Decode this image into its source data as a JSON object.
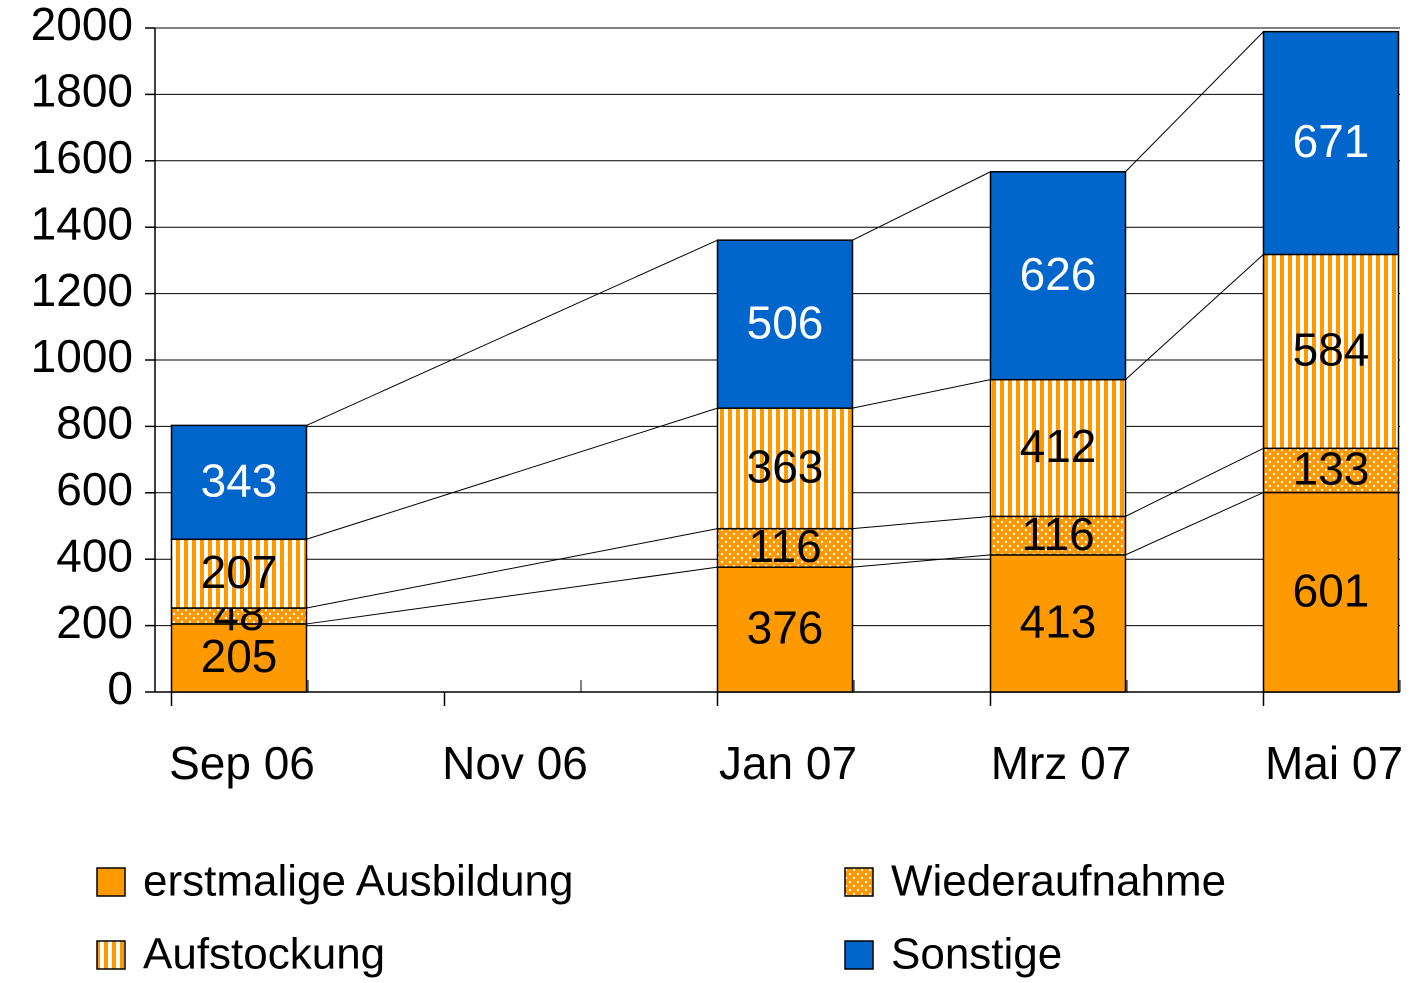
{
  "chart_data": {
    "type": "stacked_bar",
    "categories": [
      "Sep 06",
      "Nov 06",
      "Jan 07",
      "Mrz 07",
      "Mai 07"
    ],
    "series": [
      {
        "name": "erstmalige Ausbildung",
        "color": "#ff9900",
        "pattern": "solid",
        "values": [
          205,
          null,
          376,
          413,
          601
        ]
      },
      {
        "name": "Wiederaufnahme",
        "color": "#ff9900",
        "pattern": "dots",
        "values": [
          48,
          null,
          116,
          116,
          133
        ]
      },
      {
        "name": "Aufstockung",
        "color": "#ff9900",
        "pattern": "stripes",
        "values": [
          207,
          null,
          363,
          412,
          584
        ]
      },
      {
        "name": "Sonstige",
        "color": "#0066cc",
        "pattern": "solid",
        "values": [
          343,
          null,
          506,
          626,
          671
        ]
      }
    ],
    "ylim": [
      0,
      2000
    ],
    "yticks": [
      0,
      200,
      400,
      600,
      800,
      1000,
      1200,
      1400,
      1600,
      1800,
      2000
    ],
    "grid": true
  }
}
